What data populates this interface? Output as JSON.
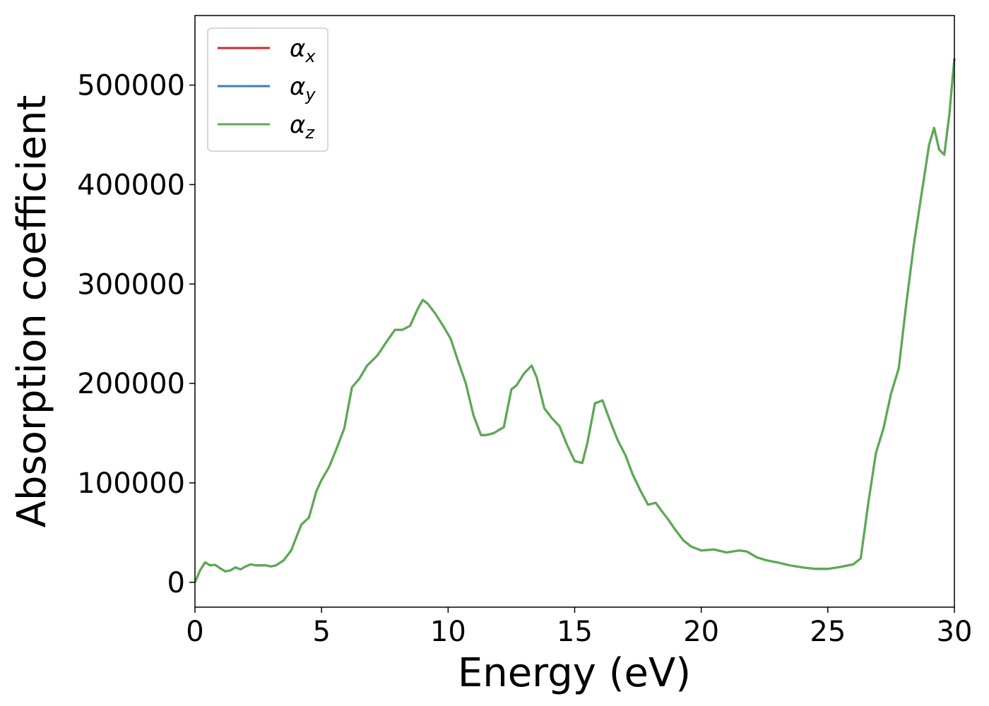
{
  "chart_data": {
    "type": "line",
    "xlabel": "Energy (eV)",
    "ylabel": "Absorption coefficient",
    "xlim": [
      0,
      30
    ],
    "ylim": [
      -25000,
      570000
    ],
    "x_ticks": [
      "0",
      "5",
      "10",
      "15",
      "20",
      "25",
      "30"
    ],
    "x_tick_values": [
      0,
      5,
      10,
      15,
      20,
      25,
      30
    ],
    "y_ticks": [
      "0",
      "100000",
      "200000",
      "300000",
      "400000",
      "500000"
    ],
    "y_tick_values": [
      0,
      100000,
      200000,
      300000,
      400000,
      500000
    ],
    "grid": false,
    "legend_position": "upper-left",
    "series": [
      {
        "name": "αx",
        "legend": {
          "symbol": "α",
          "sub": "x"
        },
        "color": "#d62728",
        "x": [
          0,
          0.2,
          0.4,
          0.6,
          0.8,
          1.0,
          1.2,
          1.4,
          1.6,
          1.8,
          2.0,
          2.2,
          2.4,
          2.6,
          2.8,
          3.0,
          3.2,
          3.5,
          3.8,
          4.0,
          4.2,
          4.5,
          4.8,
          5.0,
          5.3,
          5.6,
          5.9,
          6.2,
          6.5,
          6.8,
          7.2,
          7.6,
          7.9,
          8.2,
          8.5,
          8.8,
          9.0,
          9.2,
          9.5,
          9.8,
          10.1,
          10.4,
          10.7,
          11.0,
          11.3,
          11.5,
          11.8,
          12.2,
          12.5,
          12.7,
          13.0,
          13.3,
          13.5,
          13.8,
          14.1,
          14.4,
          14.7,
          15.0,
          15.3,
          15.5,
          15.8,
          16.1,
          16.4,
          16.7,
          17.0,
          17.3,
          17.6,
          17.9,
          18.2,
          18.4,
          18.7,
          19.0,
          19.3,
          19.6,
          20.0,
          20.5,
          21.0,
          21.5,
          21.8,
          22.2,
          22.6,
          23.0,
          23.5,
          24.0,
          24.5,
          25.0,
          25.5,
          26.0,
          26.3,
          26.6,
          26.9,
          27.2,
          27.5,
          27.8,
          28.1,
          28.4,
          28.7,
          29.0,
          29.2,
          29.4,
          29.6,
          29.8,
          30.0
        ],
        "y": [
          0,
          12000,
          20000,
          17000,
          17500,
          14000,
          11000,
          12000,
          15000,
          13000,
          16000,
          18000,
          17000,
          17000,
          17000,
          16000,
          17000,
          22000,
          32000,
          45000,
          58000,
          65000,
          92000,
          103000,
          116000,
          135000,
          155000,
          196000,
          205000,
          218000,
          228000,
          243000,
          254000,
          254000,
          258000,
          275000,
          284000,
          280000,
          270000,
          258000,
          245000,
          222000,
          200000,
          168000,
          148000,
          148000,
          150000,
          156000,
          194000,
          198000,
          210000,
          218000,
          206000,
          175000,
          165000,
          157000,
          138000,
          122000,
          120000,
          140000,
          180000,
          183000,
          162000,
          143000,
          128000,
          108000,
          92000,
          78000,
          80000,
          73000,
          63000,
          52000,
          42000,
          36000,
          32000,
          33000,
          30000,
          32000,
          31000,
          25000,
          22000,
          20000,
          17000,
          15000,
          13500,
          13500,
          15500,
          18000,
          24000,
          80000,
          130000,
          155000,
          190000,
          215000,
          280000,
          340000,
          390000,
          440000,
          457000,
          435000,
          430000,
          470000,
          527000
        ]
      },
      {
        "name": "αy",
        "legend": {
          "symbol": "α",
          "sub": "y"
        },
        "color": "#3a7fb8",
        "x": [
          0,
          0.2,
          0.4,
          0.6,
          0.8,
          1.0,
          1.2,
          1.4,
          1.6,
          1.8,
          2.0,
          2.2,
          2.4,
          2.6,
          2.8,
          3.0,
          3.2,
          3.5,
          3.8,
          4.0,
          4.2,
          4.5,
          4.8,
          5.0,
          5.3,
          5.6,
          5.9,
          6.2,
          6.5,
          6.8,
          7.2,
          7.6,
          7.9,
          8.2,
          8.5,
          8.8,
          9.0,
          9.2,
          9.5,
          9.8,
          10.1,
          10.4,
          10.7,
          11.0,
          11.3,
          11.5,
          11.8,
          12.2,
          12.5,
          12.7,
          13.0,
          13.3,
          13.5,
          13.8,
          14.1,
          14.4,
          14.7,
          15.0,
          15.3,
          15.5,
          15.8,
          16.1,
          16.4,
          16.7,
          17.0,
          17.3,
          17.6,
          17.9,
          18.2,
          18.4,
          18.7,
          19.0,
          19.3,
          19.6,
          20.0,
          20.5,
          21.0,
          21.5,
          21.8,
          22.2,
          22.6,
          23.0,
          23.5,
          24.0,
          24.5,
          25.0,
          25.5,
          26.0,
          26.3,
          26.6,
          26.9,
          27.2,
          27.5,
          27.8,
          28.1,
          28.4,
          28.7,
          29.0,
          29.2,
          29.4,
          29.6,
          29.8,
          30.0
        ],
        "y": [
          0,
          12000,
          20000,
          17000,
          17500,
          14000,
          11000,
          12000,
          15000,
          13000,
          16000,
          18000,
          17000,
          17000,
          17000,
          16000,
          17000,
          22000,
          32000,
          45000,
          58000,
          65000,
          92000,
          103000,
          116000,
          135000,
          155000,
          196000,
          205000,
          218000,
          228000,
          243000,
          254000,
          254000,
          258000,
          275000,
          284000,
          280000,
          270000,
          258000,
          245000,
          222000,
          200000,
          168000,
          148000,
          148000,
          150000,
          156000,
          194000,
          198000,
          210000,
          218000,
          206000,
          175000,
          165000,
          157000,
          138000,
          122000,
          120000,
          140000,
          180000,
          183000,
          162000,
          143000,
          128000,
          108000,
          92000,
          78000,
          80000,
          73000,
          63000,
          52000,
          42000,
          36000,
          32000,
          33000,
          30000,
          32000,
          31000,
          25000,
          22000,
          20000,
          17000,
          15000,
          13500,
          13500,
          15500,
          18000,
          24000,
          80000,
          130000,
          155000,
          190000,
          215000,
          280000,
          340000,
          390000,
          440000,
          457000,
          435000,
          430000,
          470000,
          527000
        ]
      },
      {
        "name": "αz",
        "legend": {
          "symbol": "α",
          "sub": "z"
        },
        "color": "#5aab4f",
        "x": [
          0,
          0.2,
          0.4,
          0.6,
          0.8,
          1.0,
          1.2,
          1.4,
          1.6,
          1.8,
          2.0,
          2.2,
          2.4,
          2.6,
          2.8,
          3.0,
          3.2,
          3.5,
          3.8,
          4.0,
          4.2,
          4.5,
          4.8,
          5.0,
          5.3,
          5.6,
          5.9,
          6.2,
          6.5,
          6.8,
          7.2,
          7.6,
          7.9,
          8.2,
          8.5,
          8.8,
          9.0,
          9.2,
          9.5,
          9.8,
          10.1,
          10.4,
          10.7,
          11.0,
          11.3,
          11.5,
          11.8,
          12.2,
          12.5,
          12.7,
          13.0,
          13.3,
          13.5,
          13.8,
          14.1,
          14.4,
          14.7,
          15.0,
          15.3,
          15.5,
          15.8,
          16.1,
          16.4,
          16.7,
          17.0,
          17.3,
          17.6,
          17.9,
          18.2,
          18.4,
          18.7,
          19.0,
          19.3,
          19.6,
          20.0,
          20.5,
          21.0,
          21.5,
          21.8,
          22.2,
          22.6,
          23.0,
          23.5,
          24.0,
          24.5,
          25.0,
          25.5,
          26.0,
          26.3,
          26.6,
          26.9,
          27.2,
          27.5,
          27.8,
          28.1,
          28.4,
          28.7,
          29.0,
          29.2,
          29.4,
          29.6,
          29.8,
          30.0
        ],
        "y": [
          0,
          12000,
          20000,
          17000,
          17500,
          14000,
          11000,
          12000,
          15000,
          13000,
          16000,
          18000,
          17000,
          17000,
          17000,
          16000,
          17000,
          22000,
          32000,
          45000,
          58000,
          65000,
          92000,
          103000,
          116000,
          135000,
          155000,
          196000,
          205000,
          218000,
          228000,
          243000,
          254000,
          254000,
          258000,
          275000,
          284000,
          280000,
          270000,
          258000,
          245000,
          222000,
          200000,
          168000,
          148000,
          148000,
          150000,
          156000,
          194000,
          198000,
          210000,
          218000,
          206000,
          175000,
          165000,
          157000,
          138000,
          122000,
          120000,
          140000,
          180000,
          183000,
          162000,
          143000,
          128000,
          108000,
          92000,
          78000,
          80000,
          73000,
          63000,
          52000,
          42000,
          36000,
          32000,
          33000,
          30000,
          32000,
          31000,
          25000,
          22000,
          20000,
          17000,
          15000,
          13500,
          13500,
          15500,
          18000,
          24000,
          80000,
          130000,
          155000,
          190000,
          215000,
          280000,
          340000,
          390000,
          440000,
          457000,
          435000,
          430000,
          470000,
          527000
        ]
      }
    ]
  }
}
